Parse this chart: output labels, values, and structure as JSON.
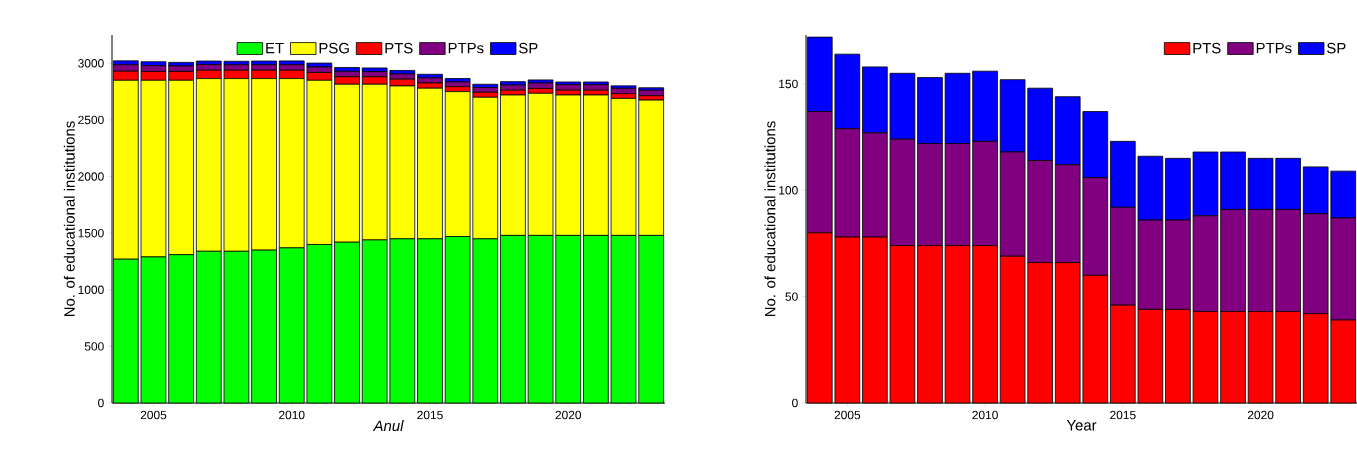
{
  "chart_data": [
    {
      "type": "bar",
      "stacked": true,
      "xlabel": "Anul",
      "ylabel": "No. of educational institutions",
      "x": [
        2004,
        2005,
        2006,
        2007,
        2008,
        2009,
        2010,
        2011,
        2012,
        2013,
        2014,
        2015,
        2016,
        2017,
        2018,
        2019,
        2020,
        2021,
        2022,
        2023
      ],
      "xlim": [
        2003.5,
        2023.5
      ],
      "xticks": [
        2005,
        2010,
        2015,
        2020
      ],
      "ylim": [
        0,
        3250
      ],
      "yticks": [
        0,
        500,
        1000,
        1500,
        2000,
        2500,
        3000
      ],
      "legend": "top",
      "series": [
        {
          "name": "ET",
          "color": "#00ff00",
          "values": [
            1270,
            1290,
            1310,
            1340,
            1340,
            1350,
            1370,
            1400,
            1420,
            1440,
            1450,
            1450,
            1470,
            1450,
            1480,
            1480,
            1480,
            1480,
            1480,
            1480
          ]
        },
        {
          "name": "PSG",
          "color": "#ffff00",
          "values": [
            1580,
            1560,
            1540,
            1525,
            1525,
            1515,
            1495,
            1450,
            1395,
            1375,
            1350,
            1330,
            1280,
            1250,
            1240,
            1255,
            1240,
            1240,
            1210,
            1195
          ]
        },
        {
          "name": "PTS",
          "color": "#ff0000",
          "values": [
            80,
            78,
            78,
            74,
            74,
            74,
            74,
            69,
            66,
            66,
            60,
            46,
            44,
            44,
            43,
            43,
            43,
            43,
            42,
            39
          ]
        },
        {
          "name": "PTPs",
          "color": "#800080",
          "values": [
            57,
            51,
            49,
            50,
            48,
            48,
            49,
            49,
            48,
            46,
            46,
            46,
            42,
            42,
            45,
            48,
            48,
            48,
            47,
            48
          ]
        },
        {
          "name": "SP",
          "color": "#0000ff",
          "values": [
            35,
            35,
            31,
            31,
            31,
            33,
            33,
            34,
            34,
            32,
            31,
            31,
            30,
            29,
            30,
            27,
            24,
            24,
            22,
            22
          ]
        }
      ]
    },
    {
      "type": "bar",
      "stacked": true,
      "xlabel": "Year",
      "ylabel": "No. of educational institutions",
      "x": [
        2004,
        2005,
        2006,
        2007,
        2008,
        2009,
        2010,
        2011,
        2012,
        2013,
        2014,
        2015,
        2016,
        2017,
        2018,
        2019,
        2020,
        2021,
        2022,
        2023
      ],
      "xlim": [
        2003.5,
        2023.5
      ],
      "xticks": [
        2005,
        2010,
        2015,
        2020
      ],
      "ylim": [
        0,
        173
      ],
      "yticks": [
        0,
        50,
        100,
        150
      ],
      "legend": "top right",
      "series": [
        {
          "name": "PTS",
          "color": "#ff0000",
          "values": [
            80,
            78,
            78,
            74,
            74,
            74,
            74,
            69,
            66,
            66,
            60,
            46,
            44,
            44,
            43,
            43,
            43,
            43,
            42,
            39
          ]
        },
        {
          "name": "PTPs",
          "color": "#800080",
          "values": [
            57,
            51,
            49,
            50,
            48,
            48,
            49,
            49,
            48,
            46,
            46,
            46,
            42,
            42,
            45,
            48,
            48,
            48,
            47,
            48
          ]
        },
        {
          "name": "SP",
          "color": "#0000ff",
          "values": [
            35,
            35,
            31,
            31,
            31,
            33,
            33,
            34,
            34,
            32,
            31,
            31,
            30,
            29,
            30,
            27,
            24,
            24,
            22,
            22
          ]
        }
      ]
    }
  ]
}
